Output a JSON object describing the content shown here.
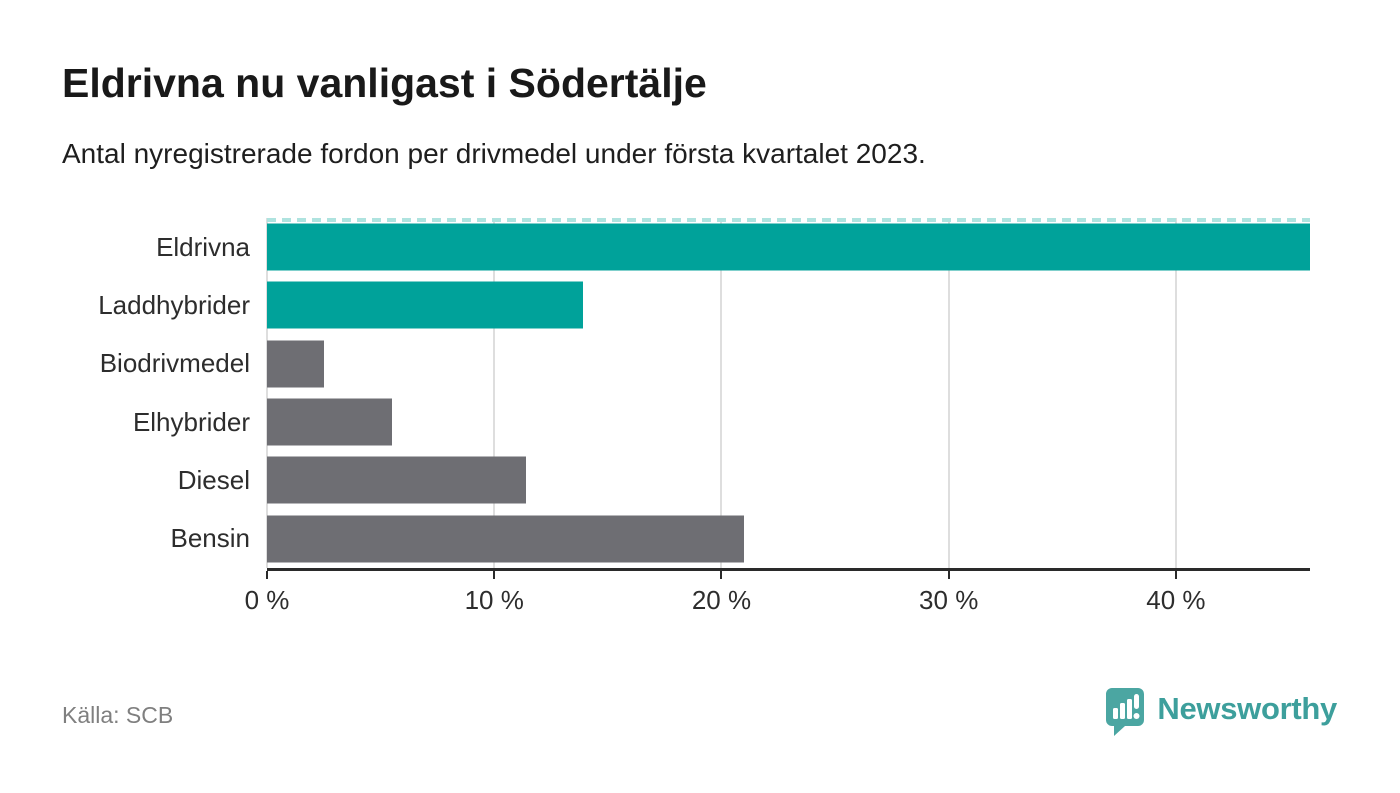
{
  "chart_data": {
    "type": "bar",
    "orientation": "horizontal",
    "title": "Eldrivna nu vanligast i Södertälje",
    "subtitle": "Antal nyregistrerade fordon per drivmedel under första kvartalet 2023.",
    "categories": [
      "Eldrivna",
      "Laddhybrider",
      "Biodrivmedel",
      "Elhybrider",
      "Diesel",
      "Bensin"
    ],
    "values": [
      45.9,
      13.9,
      2.5,
      5.5,
      11.4,
      21.0
    ],
    "unit": "%",
    "bar_colors": [
      "#00a29a",
      "#00a29a",
      "#6e6e73",
      "#6e6e73",
      "#6e6e73",
      "#6e6e73"
    ],
    "highlight_color": "#00a29a",
    "default_color": "#6e6e73",
    "xlim": [
      0,
      45.9
    ],
    "x_ticks": [
      {
        "value": 0,
        "label": "0 %"
      },
      {
        "value": 10,
        "label": "10 %"
      },
      {
        "value": 20,
        "label": "20 %"
      },
      {
        "value": 30,
        "label": "30 %"
      },
      {
        "value": 40,
        "label": "40 %"
      }
    ],
    "grid": "vertical",
    "grid_color": "#dedede",
    "axis_color": "#2a2a2a",
    "dashed_top_color": "#aee3df",
    "legend": "none"
  },
  "footer": {
    "source": "Källa: SCB",
    "brand": {
      "name": "Newsworthy",
      "icon": "speech-bubble-bar-chart-icon",
      "icon_color": "#4ba6a2",
      "wordmark_color": "#3d9f9c"
    }
  }
}
